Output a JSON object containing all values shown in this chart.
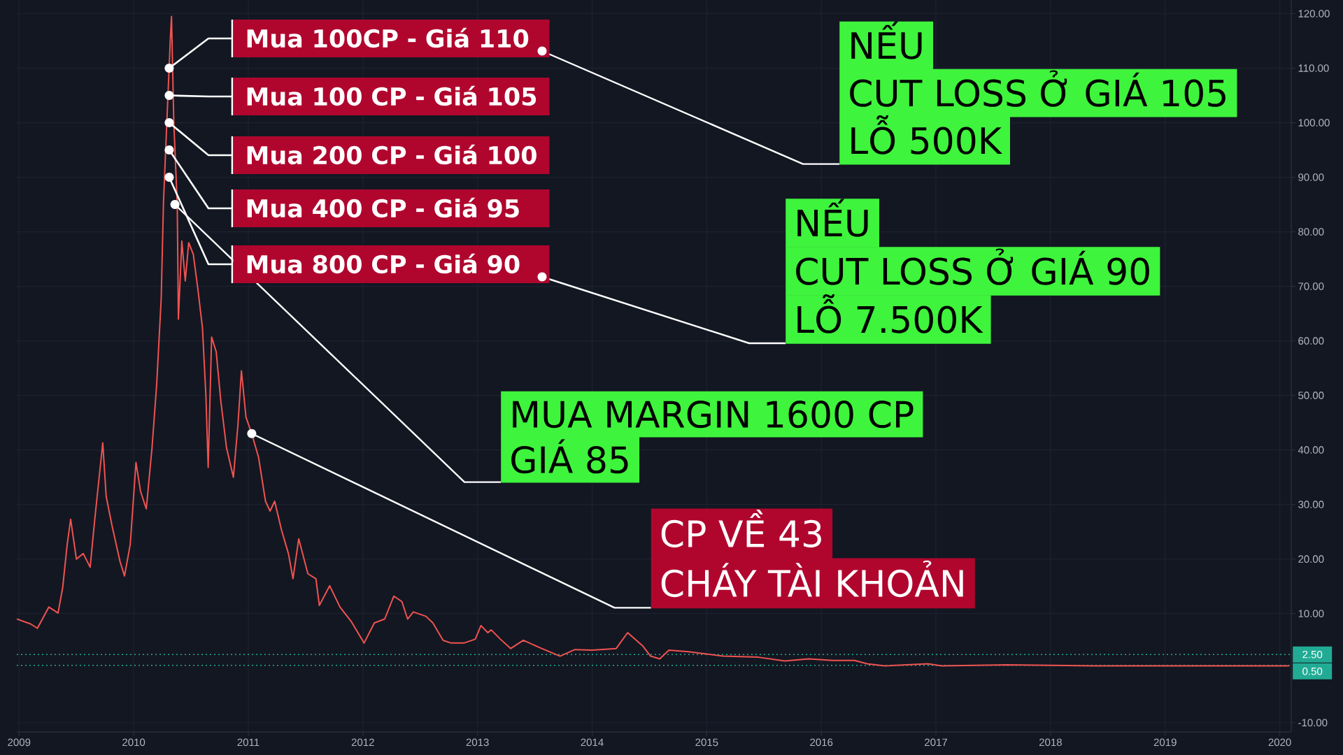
{
  "chart_data": {
    "type": "line",
    "color": "#ef5350",
    "x": [
      2008.98,
      2009.1,
      2009.16,
      2009.26,
      2009.34,
      2009.38,
      2009.42,
      2009.45,
      2009.5,
      2009.56,
      2009.62,
      2009.66,
      2009.73,
      2009.76,
      2009.81,
      2009.88,
      2009.92,
      2009.97,
      2010.02,
      2010.06,
      2010.11,
      2010.16,
      2010.2,
      2010.24,
      2010.26,
      2010.29,
      2010.32,
      2010.33,
      2010.35,
      2010.38,
      2010.39,
      2010.42,
      2010.45,
      2010.48,
      2010.52,
      2010.56,
      2010.6,
      2010.63,
      2010.65,
      2010.68,
      2010.72,
      2010.76,
      2010.81,
      2010.87,
      2010.91,
      2010.94,
      2010.98,
      2011.03,
      2011.09,
      2011.15,
      2011.19,
      2011.23,
      2011.29,
      2011.35,
      2011.39,
      2011.44,
      2011.52,
      2011.59,
      2011.62,
      2011.71,
      2011.8,
      2011.9,
      2012.01,
      2012.1,
      2012.19,
      2012.27,
      2012.34,
      2012.39,
      2012.44,
      2012.55,
      2012.61,
      2012.7,
      2012.77,
      2012.88,
      2012.98,
      2013.03,
      2013.09,
      2013.12,
      2013.2,
      2013.29,
      2013.4,
      2013.56,
      2013.72,
      2013.85,
      2014.0,
      2014.21,
      2014.31,
      2014.44,
      2014.51,
      2014.59,
      2014.67,
      2014.84,
      2015.14,
      2015.45,
      2015.68,
      2015.89,
      2016.1,
      2016.29,
      2016.4,
      2016.55,
      2016.93,
      2017.05,
      2017.62,
      2018.38,
      2019.14,
      2020.08
    ],
    "values": [
      9.0,
      8.1,
      7.3,
      11.2,
      10.1,
      14.7,
      22.7,
      27.3,
      20.0,
      21.0,
      18.5,
      27.2,
      41.3,
      31.5,
      26.2,
      19.6,
      16.9,
      22.7,
      37.7,
      32.4,
      29.2,
      40.4,
      51.8,
      67.7,
      85.4,
      100.5,
      115.5,
      119.5,
      100.0,
      85.0,
      64.0,
      78.3,
      71.0,
      78.0,
      75.9,
      69.5,
      62.4,
      50.0,
      36.8,
      60.7,
      58.0,
      49.0,
      40.4,
      35.0,
      44.7,
      54.5,
      46.0,
      43.0,
      38.6,
      30.6,
      28.8,
      30.6,
      25.3,
      21.0,
      16.4,
      23.7,
      17.3,
      16.4,
      11.5,
      15.1,
      11.2,
      8.5,
      4.6,
      8.3,
      9.0,
      13.2,
      12.2,
      9.0,
      10.3,
      9.5,
      8.3,
      5.1,
      4.6,
      4.6,
      5.3,
      7.8,
      6.5,
      7.0,
      5.3,
      3.6,
      5.1,
      3.6,
      2.2,
      3.4,
      3.3,
      3.6,
      6.5,
      4.1,
      2.2,
      1.7,
      3.3,
      3.0,
      2.2,
      2.0,
      1.3,
      1.7,
      1.4,
      1.4,
      0.8,
      0.4,
      0.8,
      0.4,
      0.6,
      0.4,
      0.4,
      0.4
    ],
    "xlim": [
      2008.98,
      2020.1
    ],
    "xticks": [
      2009,
      2010,
      2011,
      2012,
      2013,
      2014,
      2015,
      2016,
      2017,
      2018,
      2019,
      2020
    ],
    "ylim": [
      -11.7,
      122.5
    ],
    "yticks": [
      {
        "value": 120,
        "label": "120.00"
      },
      {
        "value": 110,
        "label": "110.00"
      },
      {
        "value": 100,
        "label": "100.00"
      },
      {
        "value": 90,
        "label": "90.00"
      },
      {
        "value": 80,
        "label": "80.00"
      },
      {
        "value": 70,
        "label": "70.00"
      },
      {
        "value": 60,
        "label": "60.00"
      },
      {
        "value": 50,
        "label": "50.00"
      },
      {
        "value": 40,
        "label": "40.00"
      },
      {
        "value": 30,
        "label": "30.00"
      },
      {
        "value": 20,
        "label": "20.00"
      },
      {
        "value": 10,
        "label": "10.00"
      },
      {
        "value": -10,
        "label": "-10.00"
      }
    ],
    "grid": true,
    "ref_lines": [
      {
        "axis": "y",
        "value": 2.5,
        "label": "2.50",
        "color": "#22ab94",
        "line_style": "dotted"
      },
      {
        "axis": "y",
        "value": 0.5,
        "label": "0.50",
        "color": "#22ab94",
        "line_style": "dotted"
      }
    ],
    "annotations": [
      {
        "text": "Mua 100CP - Giá 110",
        "x": 2010.31,
        "y": 110
      },
      {
        "text": "Mua 100 CP - Giá 105",
        "x": 2010.31,
        "y": 105
      },
      {
        "text": "Mua 200 CP - Giá 100",
        "x": 2010.31,
        "y": 100
      },
      {
        "text": "Mua 400 CP - Giá 95",
        "x": 2010.31,
        "y": 95
      },
      {
        "text": "Mua 800 CP - Giá 90",
        "x": 2010.31,
        "y": 90
      },
      "NẾU",
      "CUT LOSS Ở GIÁ 105",
      "LỖ 500K",
      "NẾU",
      "CUT LOSS Ở GIÁ 90",
      "LỖ 7.500K",
      "MUA MARGIN 1600 CP",
      {
        "text": "GIÁ 85",
        "x": 2010.36,
        "y": 85
      },
      "CP VỀ 43",
      {
        "text": "CHÁY TÀI KHOẢN",
        "x": 2011.03,
        "y": 43
      }
    ]
  }
}
